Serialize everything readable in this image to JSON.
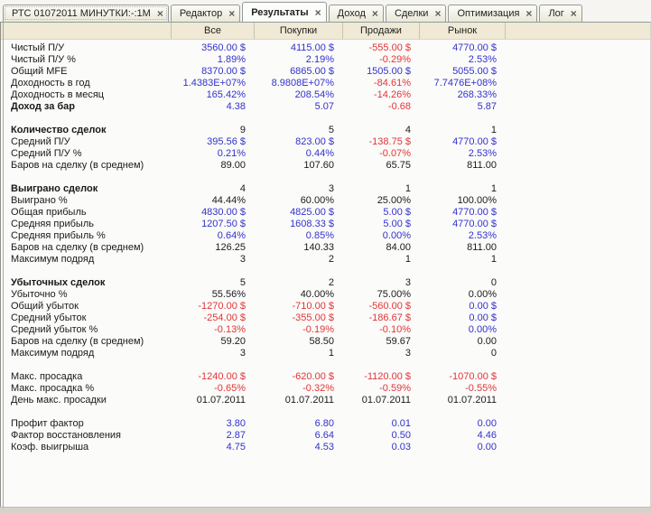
{
  "window": {
    "close_glyph": "×"
  },
  "tabs": [
    {
      "name": "chart",
      "label": "РТС 01072011 МИНУТКИ:-:1М",
      "active": false
    },
    {
      "name": "editor",
      "label": "Редактор",
      "active": false
    },
    {
      "name": "results",
      "label": "Результаты",
      "active": true
    },
    {
      "name": "income",
      "label": "Доход",
      "active": false
    },
    {
      "name": "trades",
      "label": "Сделки",
      "active": false
    },
    {
      "name": "optimization",
      "label": "Оптимизация",
      "active": false
    },
    {
      "name": "log",
      "label": "Лог",
      "active": false
    }
  ],
  "columns": [
    "Все",
    "Покупки",
    "Продажи",
    "Рынок"
  ],
  "colors": {
    "positive": "#3232cd",
    "negative": "#e23535",
    "text": "#1a1a1a",
    "header_bg": "#efe9d5",
    "tab_bg": "#ece9d8"
  },
  "table": {
    "sections": [
      {
        "rows": [
          {
            "label": "Чистый П/У",
            "bold": false,
            "values": [
              "3560.00 $",
              "4115.00 $",
              "-555.00 $",
              "4770.00 $"
            ],
            "styles": [
              "p",
              "p",
              "n",
              "p"
            ]
          },
          {
            "label": "Чистый П/У %",
            "bold": false,
            "values": [
              "1.89%",
              "2.19%",
              "-0.29%",
              "2.53%"
            ],
            "styles": [
              "p",
              "p",
              "n",
              "p"
            ]
          },
          {
            "label": "Общий MFE",
            "bold": false,
            "values": [
              "8370.00 $",
              "6865.00 $",
              "1505.00 $",
              "5055.00 $"
            ],
            "styles": [
              "p",
              "p",
              "p",
              "p"
            ]
          },
          {
            "label": "Доходность в год",
            "bold": false,
            "values": [
              "1.4383E+07%",
              "8.9808E+07%",
              "-84.61%",
              "7.7476E+08%"
            ],
            "styles": [
              "p",
              "p",
              "n",
              "p"
            ]
          },
          {
            "label": "Доходность в месяц",
            "bold": false,
            "values": [
              "165.42%",
              "208.54%",
              "-14.26%",
              "268.33%"
            ],
            "styles": [
              "p",
              "p",
              "n",
              "p"
            ]
          },
          {
            "label": "Доход за бар",
            "bold": true,
            "values": [
              "4.38",
              "5.07",
              "-0.68",
              "5.87"
            ],
            "styles": [
              "p",
              "p",
              "n",
              "p"
            ]
          }
        ]
      },
      {
        "rows": [
          {
            "label": "Количество сделок",
            "bold": true,
            "values": [
              "9",
              "5",
              "4",
              "1"
            ],
            "styles": [
              "k",
              "k",
              "k",
              "k"
            ]
          },
          {
            "label": "Средний П/У",
            "bold": false,
            "values": [
              "395.56 $",
              "823.00 $",
              "-138.75 $",
              "4770.00 $"
            ],
            "styles": [
              "p",
              "p",
              "n",
              "p"
            ]
          },
          {
            "label": "Средний П/У %",
            "bold": false,
            "values": [
              "0.21%",
              "0.44%",
              "-0.07%",
              "2.53%"
            ],
            "styles": [
              "p",
              "p",
              "n",
              "p"
            ]
          },
          {
            "label": "Баров на сделку (в среднем)",
            "bold": false,
            "values": [
              "89.00",
              "107.60",
              "65.75",
              "811.00"
            ],
            "styles": [
              "k",
              "k",
              "k",
              "k"
            ]
          }
        ]
      },
      {
        "rows": [
          {
            "label": "Выиграно сделок",
            "bold": true,
            "values": [
              "4",
              "3",
              "1",
              "1"
            ],
            "styles": [
              "k",
              "k",
              "k",
              "k"
            ]
          },
          {
            "label": "Выиграно %",
            "bold": false,
            "values": [
              "44.44%",
              "60.00%",
              "25.00%",
              "100.00%"
            ],
            "styles": [
              "k",
              "k",
              "k",
              "k"
            ]
          },
          {
            "label": "Общая прибыль",
            "bold": false,
            "values": [
              "4830.00 $",
              "4825.00 $",
              "5.00 $",
              "4770.00 $"
            ],
            "styles": [
              "p",
              "p",
              "p",
              "p"
            ]
          },
          {
            "label": "Средняя прибыль",
            "bold": false,
            "values": [
              "1207.50 $",
              "1608.33 $",
              "5.00 $",
              "4770.00 $"
            ],
            "styles": [
              "p",
              "p",
              "p",
              "p"
            ]
          },
          {
            "label": "Средняя прибыль %",
            "bold": false,
            "values": [
              "0.64%",
              "0.85%",
              "0.00%",
              "2.53%"
            ],
            "styles": [
              "p",
              "p",
              "p",
              "p"
            ]
          },
          {
            "label": "Баров на сделку (в среднем)",
            "bold": false,
            "values": [
              "126.25",
              "140.33",
              "84.00",
              "811.00"
            ],
            "styles": [
              "k",
              "k",
              "k",
              "k"
            ]
          },
          {
            "label": "Максимум подряд",
            "bold": false,
            "values": [
              "3",
              "2",
              "1",
              "1"
            ],
            "styles": [
              "k",
              "k",
              "k",
              "k"
            ]
          }
        ]
      },
      {
        "rows": [
          {
            "label": "Убыточных сделок",
            "bold": true,
            "values": [
              "5",
              "2",
              "3",
              "0"
            ],
            "styles": [
              "k",
              "k",
              "k",
              "k"
            ]
          },
          {
            "label": "Убыточно %",
            "bold": false,
            "values": [
              "55.56%",
              "40.00%",
              "75.00%",
              "0.00%"
            ],
            "styles": [
              "k",
              "k",
              "k",
              "k"
            ]
          },
          {
            "label": "Общий убыток",
            "bold": false,
            "values": [
              "-1270.00 $",
              "-710.00 $",
              "-560.00 $",
              "0.00 $"
            ],
            "styles": [
              "n",
              "n",
              "n",
              "p"
            ]
          },
          {
            "label": "Средний убыток",
            "bold": false,
            "values": [
              "-254.00 $",
              "-355.00 $",
              "-186.67 $",
              "0.00 $"
            ],
            "styles": [
              "n",
              "n",
              "n",
              "p"
            ]
          },
          {
            "label": "Средний убыток %",
            "bold": false,
            "values": [
              "-0.13%",
              "-0.19%",
              "-0.10%",
              "0.00%"
            ],
            "styles": [
              "n",
              "n",
              "n",
              "p"
            ]
          },
          {
            "label": "Баров на сделку (в среднем)",
            "bold": false,
            "values": [
              "59.20",
              "58.50",
              "59.67",
              "0.00"
            ],
            "styles": [
              "k",
              "k",
              "k",
              "k"
            ]
          },
          {
            "label": "Максимум подряд",
            "bold": false,
            "values": [
              "3",
              "1",
              "3",
              "0"
            ],
            "styles": [
              "k",
              "k",
              "k",
              "k"
            ]
          }
        ]
      },
      {
        "rows": [
          {
            "label": "Макс. просадка",
            "bold": false,
            "values": [
              "-1240.00 $",
              "-620.00 $",
              "-1120.00 $",
              "-1070.00 $"
            ],
            "styles": [
              "n",
              "n",
              "n",
              "n"
            ]
          },
          {
            "label": "Макс. просадка %",
            "bold": false,
            "values": [
              "-0.65%",
              "-0.32%",
              "-0.59%",
              "-0.55%"
            ],
            "styles": [
              "n",
              "n",
              "n",
              "n"
            ]
          },
          {
            "label": "День макс. просадки",
            "bold": false,
            "values": [
              "01.07.2011",
              "01.07.2011",
              "01.07.2011",
              "01.07.2011"
            ],
            "styles": [
              "k",
              "k",
              "k",
              "k"
            ]
          }
        ]
      },
      {
        "rows": [
          {
            "label": "Профит фактор",
            "bold": false,
            "values": [
              "3.80",
              "6.80",
              "0.01",
              "0.00"
            ],
            "styles": [
              "p",
              "p",
              "p",
              "p"
            ]
          },
          {
            "label": "Фактор восстановления",
            "bold": false,
            "values": [
              "2.87",
              "6.64",
              "0.50",
              "4.46"
            ],
            "styles": [
              "p",
              "p",
              "p",
              "p"
            ]
          },
          {
            "label": "Коэф. выигрыша",
            "bold": false,
            "values": [
              "4.75",
              "4.53",
              "0.03",
              "0.00"
            ],
            "styles": [
              "p",
              "p",
              "p",
              "p"
            ]
          }
        ]
      }
    ]
  }
}
